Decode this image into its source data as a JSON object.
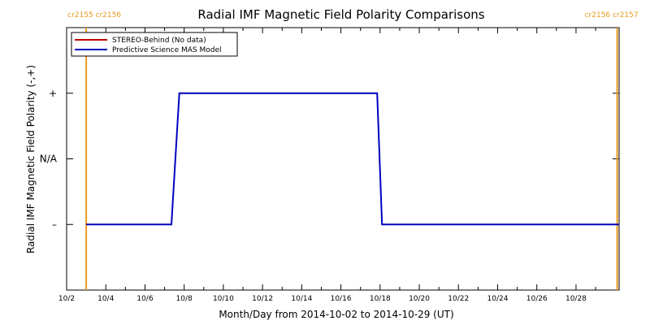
{
  "chart_data": {
    "type": "line",
    "title": "Radial IMF Magnetic Field Polarity Comparisons",
    "xlabel": "Month/Day from 2014-10-02 to 2014-10-29 (UT)",
    "ylabel": "Radial IMF Magnetic Field Polarity (-,+)",
    "xlim": [
      0,
      28.2
    ],
    "ylim": [
      -2,
      2
    ],
    "x_ticks": [
      {
        "day": 0,
        "label": "10/2"
      },
      {
        "day": 2,
        "label": "10/4"
      },
      {
        "day": 4,
        "label": "10/6"
      },
      {
        "day": 6,
        "label": "10/8"
      },
      {
        "day": 8,
        "label": "10/10"
      },
      {
        "day": 10,
        "label": "10/12"
      },
      {
        "day": 12,
        "label": "10/14"
      },
      {
        "day": 14,
        "label": "10/16"
      },
      {
        "day": 16,
        "label": "10/18"
      },
      {
        "day": 18,
        "label": "10/20"
      },
      {
        "day": 20,
        "label": "10/22"
      },
      {
        "day": 22,
        "label": "10/24"
      },
      {
        "day": 24,
        "label": "10/26"
      },
      {
        "day": 26,
        "label": "10/28"
      }
    ],
    "y_ticks": [
      {
        "value": 1,
        "label": "+"
      },
      {
        "value": 0,
        "label": "N/A"
      },
      {
        "value": -1,
        "label": "–"
      }
    ],
    "carrington_markers": [
      {
        "day": 1.0,
        "label": "cr2155 cr2156",
        "side": "left"
      },
      {
        "day": 28.1,
        "label": "cr2156 cr2157",
        "side": "right"
      }
    ],
    "legend": {
      "placement": "top-left",
      "entries": [
        {
          "name": "STEREO-Behind (No data)",
          "color": "#c00000"
        },
        {
          "name": "Predictive Science MAS Model",
          "color": "#0000c0"
        }
      ]
    },
    "series": [
      {
        "name": "Predictive Science MAS Model",
        "color": "#0000c0",
        "points": [
          [
            1.0,
            -1
          ],
          [
            5.35,
            -1
          ],
          [
            5.75,
            1
          ],
          [
            15.85,
            1
          ],
          [
            16.1,
            -1
          ],
          [
            28.2,
            -1
          ]
        ]
      }
    ]
  }
}
